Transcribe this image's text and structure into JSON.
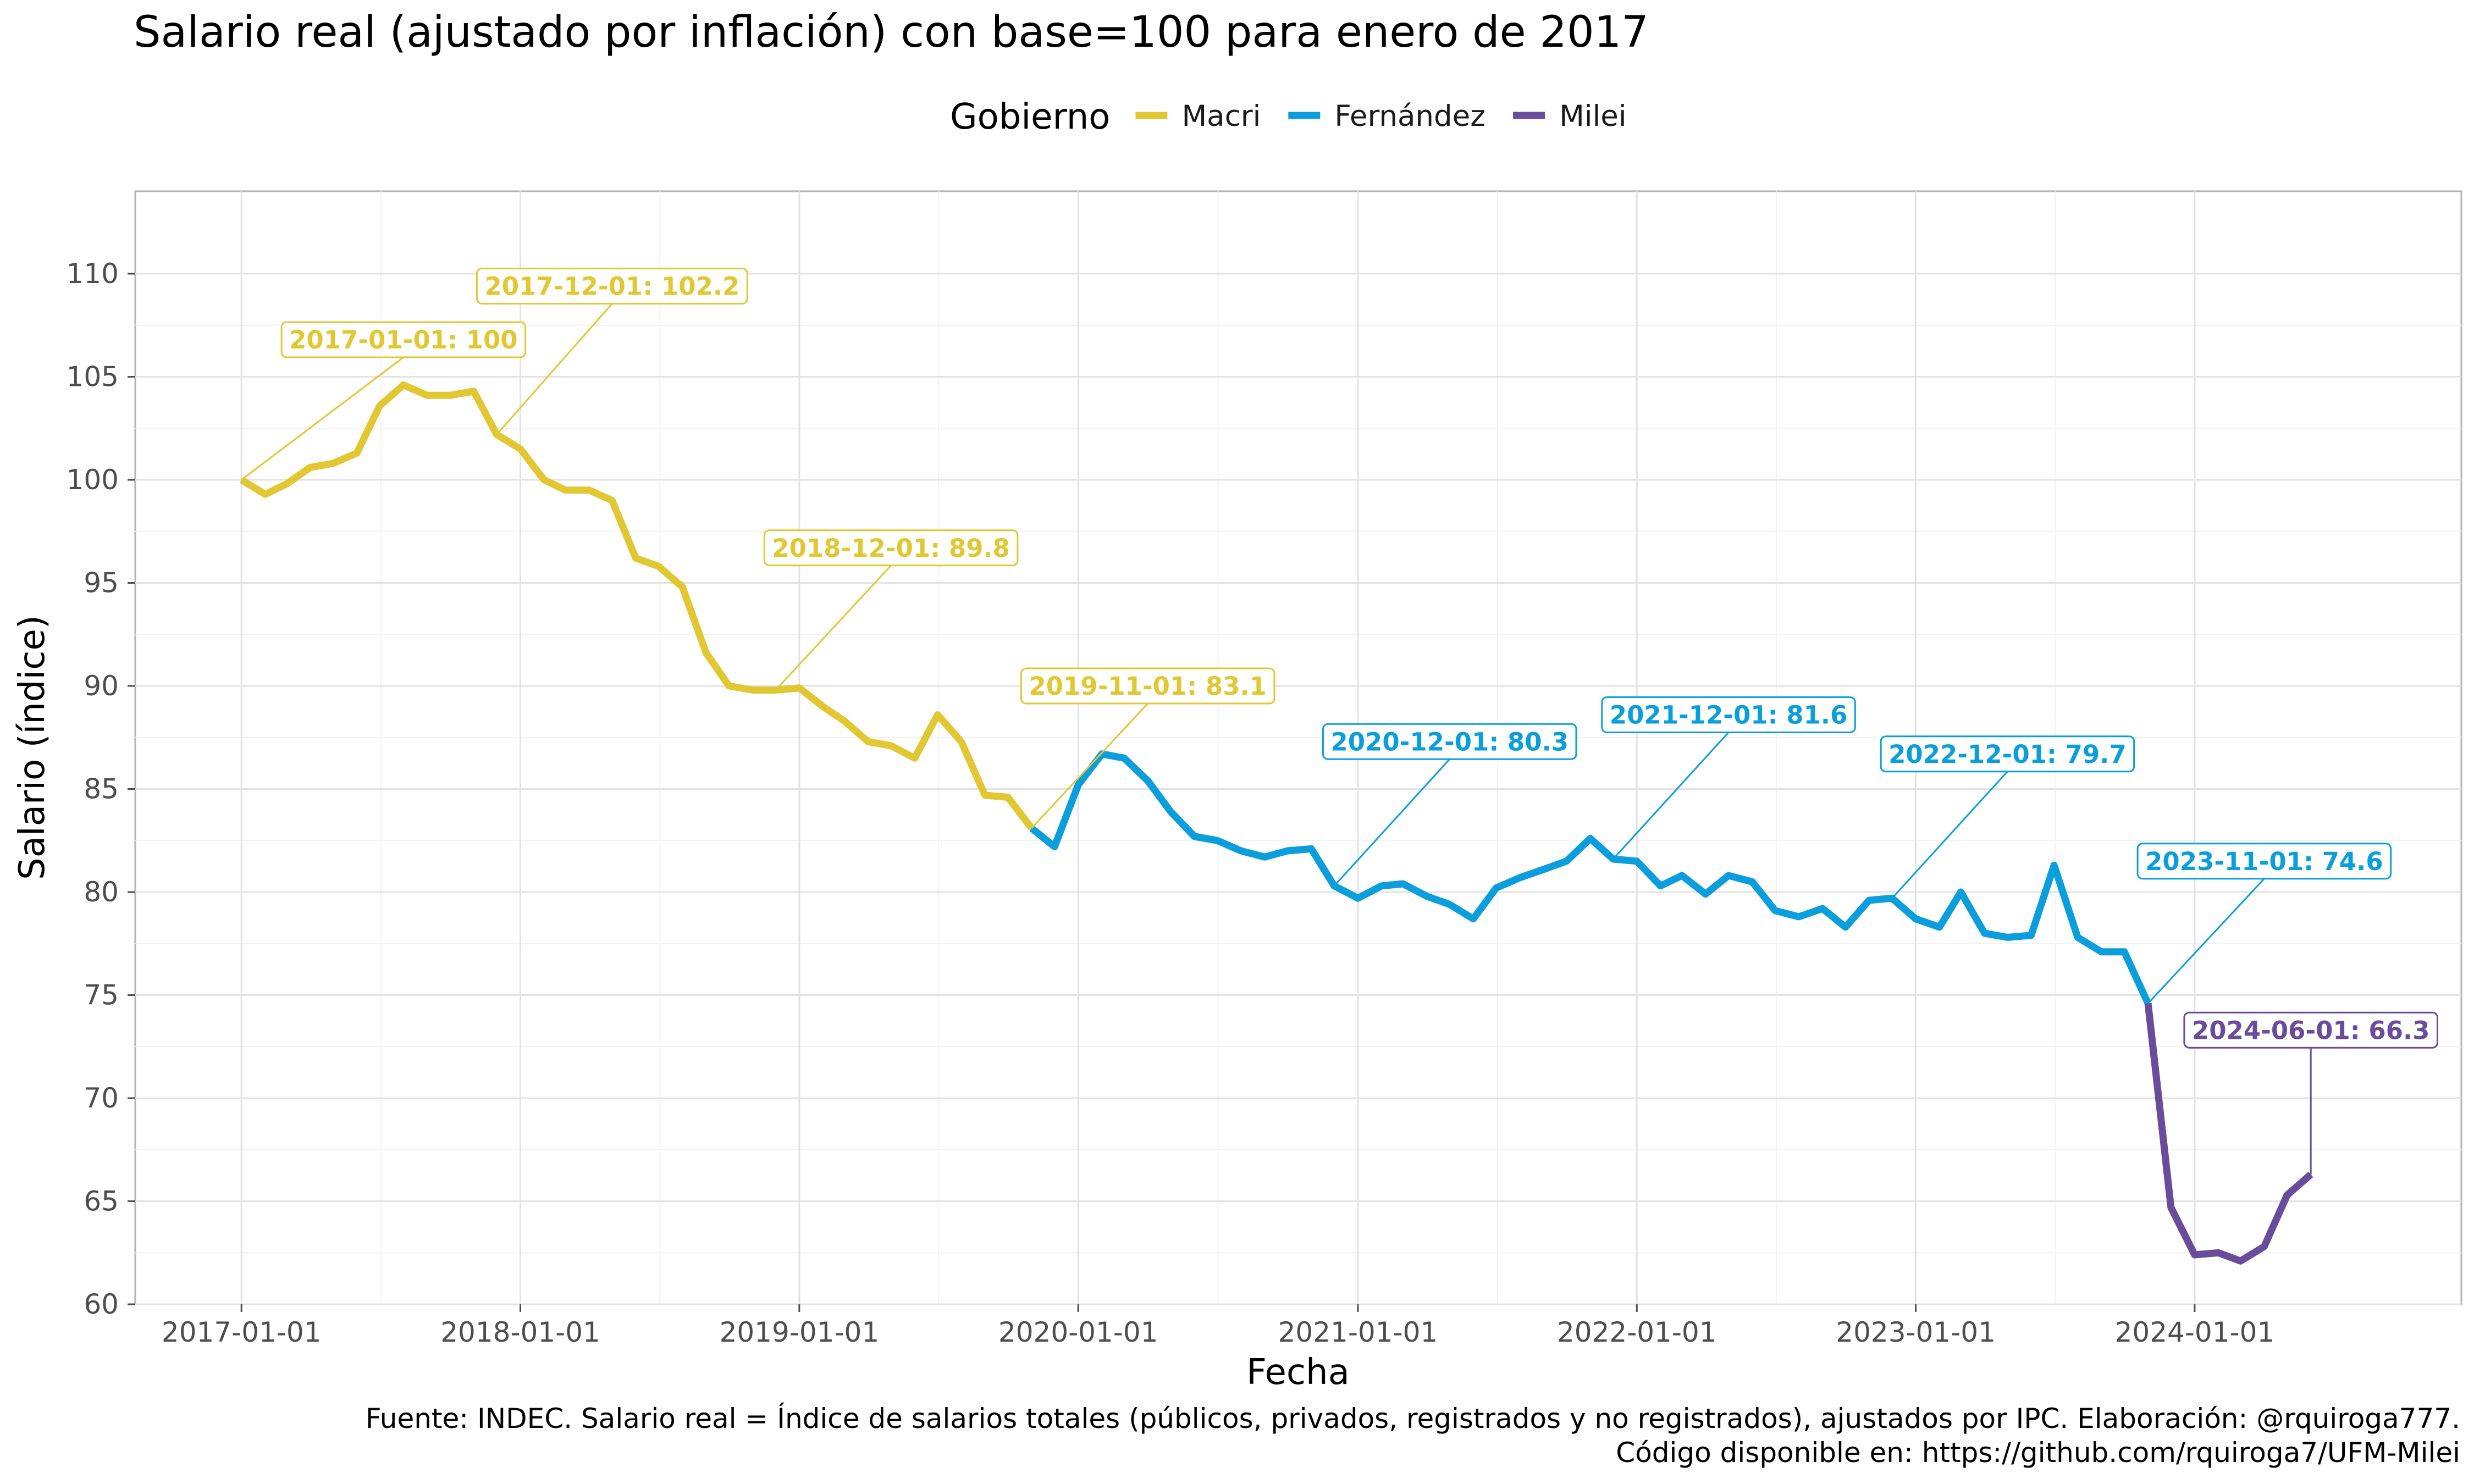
{
  "chart_data": {
    "type": "line",
    "title": "Salario real (ajustado por inflación) con base=100 para enero de 2017",
    "xlabel": "Fecha",
    "ylabel": "Salario (índice)",
    "ylim": [
      60,
      114
    ],
    "xlim": [
      "2016-08-15",
      "2024-12-15"
    ],
    "x_ticks": [
      "2017-01-01",
      "2018-01-01",
      "2019-01-01",
      "2020-01-01",
      "2021-01-01",
      "2022-01-01",
      "2023-01-01",
      "2024-01-01"
    ],
    "y_ticks": [
      60,
      65,
      70,
      75,
      80,
      85,
      90,
      95,
      100,
      105,
      110
    ],
    "grid": true,
    "legend": {
      "title": "Gobierno",
      "position": "top",
      "items": [
        {
          "label": "Macri",
          "color": "#E1C833"
        },
        {
          "label": "Fernández",
          "color": "#0A9FDC"
        },
        {
          "label": "Milei",
          "color": "#6A4C9C"
        }
      ]
    },
    "series": [
      {
        "name": "Macri",
        "color": "#E1C833",
        "x": [
          "2017-01-01",
          "2017-02-01",
          "2017-03-01",
          "2017-04-01",
          "2017-05-01",
          "2017-06-01",
          "2017-07-01",
          "2017-08-01",
          "2017-09-01",
          "2017-10-01",
          "2017-11-01",
          "2017-12-01",
          "2018-01-01",
          "2018-02-01",
          "2018-03-01",
          "2018-04-01",
          "2018-05-01",
          "2018-06-01",
          "2018-07-01",
          "2018-08-01",
          "2018-09-01",
          "2018-10-01",
          "2018-11-01",
          "2018-12-01",
          "2019-01-01",
          "2019-02-01",
          "2019-03-01",
          "2019-04-01",
          "2019-05-01",
          "2019-06-01",
          "2019-07-01",
          "2019-08-01",
          "2019-09-01",
          "2019-10-01",
          "2019-11-01"
        ],
        "y": [
          100,
          99.3,
          99.8,
          100.6,
          100.8,
          101.3,
          103.6,
          104.6,
          104.1,
          104.1,
          104.3,
          102.2,
          101.5,
          100.0,
          99.5,
          99.5,
          99.0,
          96.2,
          95.8,
          94.8,
          91.6,
          90.0,
          89.8,
          89.8,
          89.9,
          89.0,
          88.3,
          87.3,
          87.1,
          86.5,
          88.6,
          87.3,
          84.7,
          84.6,
          83.1
        ]
      },
      {
        "name": "Fernández",
        "color": "#0A9FDC",
        "x": [
          "2019-11-01",
          "2019-12-01",
          "2020-01-01",
          "2020-02-01",
          "2020-03-01",
          "2020-04-01",
          "2020-05-01",
          "2020-06-01",
          "2020-07-01",
          "2020-08-01",
          "2020-09-01",
          "2020-10-01",
          "2020-11-01",
          "2020-12-01",
          "2021-01-01",
          "2021-02-01",
          "2021-03-01",
          "2021-04-01",
          "2021-05-01",
          "2021-06-01",
          "2021-07-01",
          "2021-08-01",
          "2021-09-01",
          "2021-10-01",
          "2021-11-01",
          "2021-12-01",
          "2022-01-01",
          "2022-02-01",
          "2022-03-01",
          "2022-04-01",
          "2022-05-01",
          "2022-06-01",
          "2022-07-01",
          "2022-08-01",
          "2022-09-01",
          "2022-10-01",
          "2022-11-01",
          "2022-12-01",
          "2023-01-01",
          "2023-02-01",
          "2023-03-01",
          "2023-04-01",
          "2023-05-01",
          "2023-06-01",
          "2023-07-01",
          "2023-08-01",
          "2023-09-01",
          "2023-10-01",
          "2023-11-01"
        ],
        "y": [
          83.1,
          82.2,
          85.2,
          86.7,
          86.5,
          85.4,
          83.9,
          82.7,
          82.5,
          82.0,
          81.7,
          82.0,
          82.1,
          80.3,
          79.7,
          80.3,
          80.4,
          79.8,
          79.4,
          78.7,
          80.2,
          80.7,
          81.1,
          81.5,
          82.6,
          81.6,
          81.5,
          80.3,
          80.8,
          79.9,
          80.8,
          80.5,
          79.1,
          78.8,
          79.2,
          78.3,
          79.6,
          79.7,
          78.7,
          78.3,
          80.0,
          78.0,
          77.8,
          77.9,
          81.3,
          77.8,
          77.1,
          77.1,
          74.6
        ]
      },
      {
        "name": "Milei",
        "color": "#6A4C9C",
        "x": [
          "2023-11-01",
          "2023-12-01",
          "2024-01-01",
          "2024-02-01",
          "2024-03-01",
          "2024-04-01",
          "2024-05-01",
          "2024-06-01"
        ],
        "y": [
          74.6,
          64.7,
          62.4,
          62.5,
          62.1,
          62.8,
          65.3,
          66.3
        ]
      }
    ],
    "annotations": [
      {
        "text": "2017-01-01: 100",
        "x": "2017-01-01",
        "y": 100,
        "label_x": "2017-08-01",
        "label_y": 106.8,
        "color": "#E1C833"
      },
      {
        "text": "2017-12-01: 102.2",
        "x": "2017-12-01",
        "y": 102.2,
        "label_x": "2018-05-01",
        "label_y": 109.4,
        "color": "#E1C833"
      },
      {
        "text": "2018-12-01: 89.8",
        "x": "2018-12-01",
        "y": 89.8,
        "label_x": "2019-05-01",
        "label_y": 96.7,
        "color": "#E1C833"
      },
      {
        "text": "2019-11-01: 83.1",
        "x": "2019-11-01",
        "y": 83.1,
        "label_x": "2020-04-01",
        "label_y": 90.0,
        "color": "#E1C833"
      },
      {
        "text": "2020-12-01: 80.3",
        "x": "2020-12-01",
        "y": 80.3,
        "label_x": "2021-05-01",
        "label_y": 87.3,
        "color": "#0A9FDC"
      },
      {
        "text": "2021-12-01: 81.6",
        "x": "2021-12-01",
        "y": 81.6,
        "label_x": "2022-05-01",
        "label_y": 88.6,
        "color": "#0A9FDC"
      },
      {
        "text": "2022-12-01: 79.7",
        "x": "2022-12-01",
        "y": 79.7,
        "label_x": "2023-05-01",
        "label_y": 86.7,
        "color": "#0A9FDC"
      },
      {
        "text": "2023-11-01: 74.6",
        "x": "2023-11-01",
        "y": 74.6,
        "label_x": "2024-04-01",
        "label_y": 81.5,
        "color": "#0A9FDC"
      },
      {
        "text": "2024-06-01: 66.3",
        "x": "2024-06-01",
        "y": 66.3,
        "label_x": "2024-06-01",
        "label_y": 73.3,
        "color": "#6A4C9C"
      }
    ],
    "caption": [
      "Fuente: INDEC. Salario real = Índice de salarios totales (públicos, privados, registrados y no registrados), ajustados por IPC. Elaboración: @rquiroga777.",
      "Código disponible en: https://github.com/rquiroga7/UFM-Milei"
    ]
  }
}
